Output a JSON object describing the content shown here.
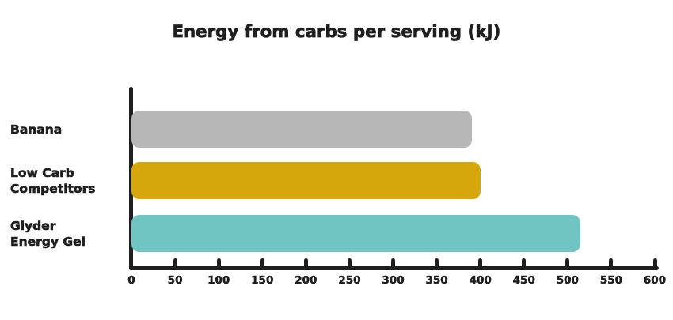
{
  "title": "Energy from carbs per serving (kJ)",
  "chart_data": {
    "type": "bar",
    "orientation": "horizontal",
    "title": "Energy from carbs per serving (kJ)",
    "categories": [
      "Banana",
      "Low Carb Competitors",
      "Glyder Energy Gel"
    ],
    "category_label_lines": [
      [
        "Banana"
      ],
      [
        "Low Carb",
        "Competitors"
      ],
      [
        "Glyder",
        "Energy Gel"
      ]
    ],
    "values": [
      390,
      400,
      515
    ],
    "unit": "kJ",
    "xlabel": "",
    "ylabel": "",
    "xlim": [
      0,
      600
    ],
    "xtick_step": 50,
    "xtick_labels": [
      "0",
      "50",
      "100",
      "150",
      "200",
      "250",
      "300",
      "350",
      "400",
      "450",
      "500",
      "550",
      "600"
    ],
    "bar_colors": [
      "#b7b7b7",
      "#d5a70c",
      "#70c4c2"
    ],
    "axis_color": "#1f1f1f",
    "text_color": "#1f1f1f",
    "background_color": "#ffffff",
    "grid": false,
    "legend": false
  }
}
